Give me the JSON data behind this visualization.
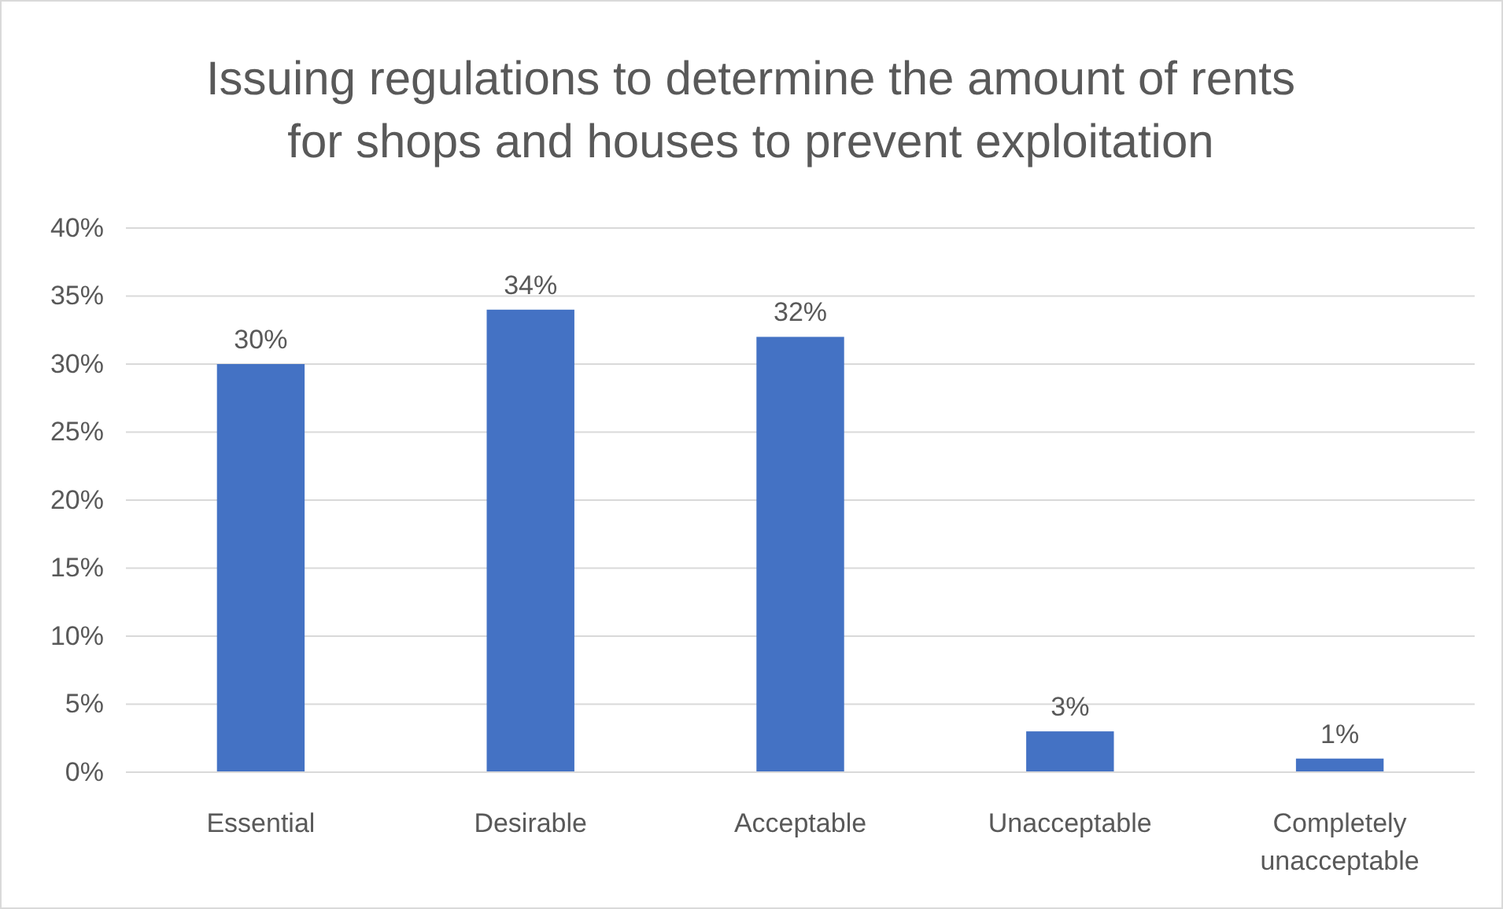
{
  "chart_data": {
    "type": "bar",
    "title": "Issuing regulations to determine the amount of rents for shops and houses to prevent exploitation",
    "categories": [
      "Essential",
      "Desirable",
      "Acceptable",
      "Unacceptable",
      "Completely unacceptable"
    ],
    "values": [
      30,
      34,
      32,
      3,
      1
    ],
    "value_labels": [
      "30%",
      "34%",
      "32%",
      "3%",
      "1%"
    ],
    "color": "#4472c4",
    "ylim": [
      0,
      40
    ],
    "yticks": [
      {
        "value": 0,
        "label": "0%"
      },
      {
        "value": 5,
        "label": "5%"
      },
      {
        "value": 10,
        "label": "10%"
      },
      {
        "value": 15,
        "label": "15%"
      },
      {
        "value": 20,
        "label": "20%"
      },
      {
        "value": 25,
        "label": "25%"
      },
      {
        "value": 30,
        "label": "30%"
      },
      {
        "value": 35,
        "label": "35%"
      },
      {
        "value": 40,
        "label": "40%"
      }
    ],
    "grid": "y"
  }
}
